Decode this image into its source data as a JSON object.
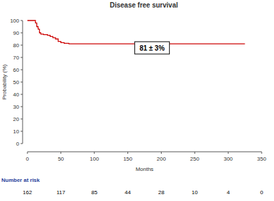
{
  "chart_data": {
    "type": "line",
    "title": "Disease free survival",
    "x_label": "Months",
    "y_label": "Probability (%)",
    "x": [
      0,
      12,
      14,
      16,
      18,
      20,
      24,
      30,
      34,
      38,
      42,
      46,
      50,
      55,
      62,
      325
    ],
    "values": [
      100,
      98,
      95,
      93,
      90,
      89,
      88.5,
      88,
      87,
      86,
      85,
      83,
      82,
      81.5,
      81,
      81
    ],
    "color": "#cc0000",
    "line_style": "step",
    "xlim": [
      0,
      350
    ],
    "xticks": [
      0,
      50,
      100,
      150,
      200,
      250,
      300,
      350
    ],
    "ylim": [
      0,
      100
    ],
    "yticks": [
      0,
      10,
      20,
      30,
      40,
      50,
      60,
      70,
      80,
      90,
      100
    ],
    "annotations": [
      "81 ± 3%"
    ],
    "number_at_risk": {
      "title": "Number at risk",
      "x": [
        0,
        50,
        100,
        150,
        200,
        250,
        300,
        350
      ],
      "values": [
        162,
        117,
        85,
        44,
        28,
        10,
        4,
        0
      ]
    }
  }
}
